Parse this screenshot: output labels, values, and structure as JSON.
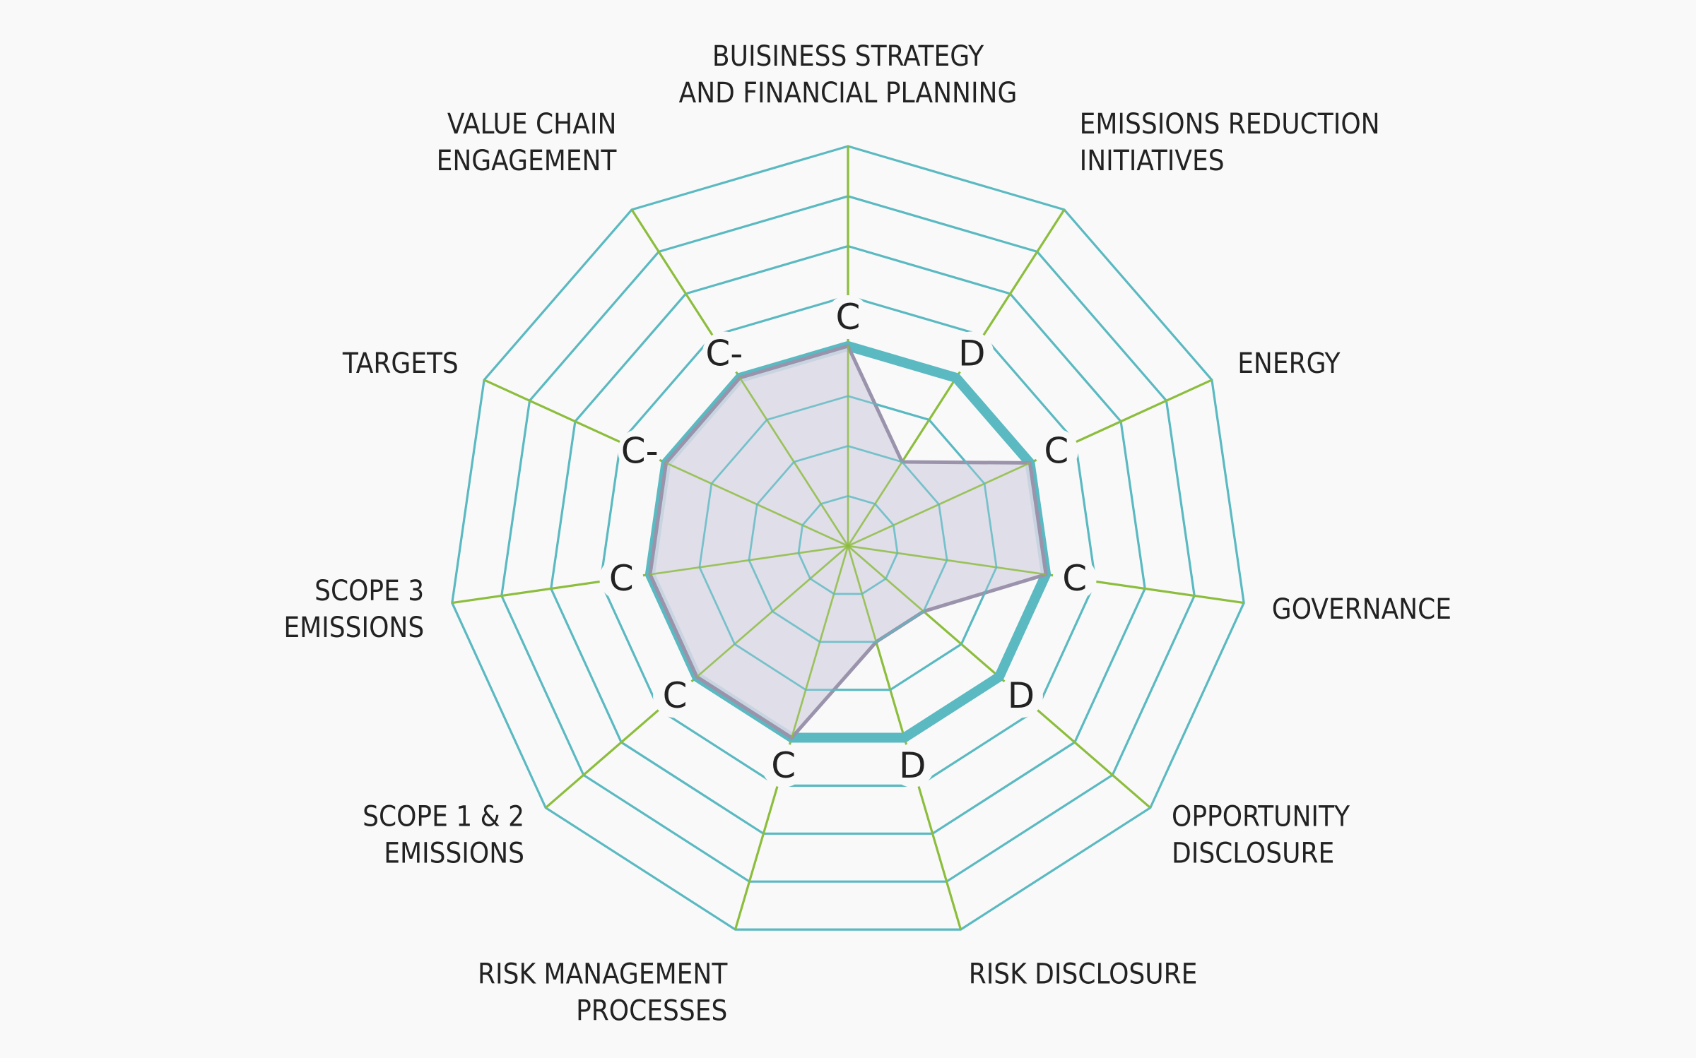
{
  "chart_data": {
    "type": "radar",
    "title": "",
    "levels": 8,
    "colors": {
      "grid": "#5ab9c1",
      "spokes": "#8cbd3c",
      "outline": "#5ab9c1",
      "series_stroke": "#9a93ab",
      "series_fill": "#dcd9e6",
      "background": "#f9f9f9"
    },
    "categories": [
      {
        "label": [
          "BUISINESS STRATEGY",
          "AND FINANCIAL PLANNING"
        ],
        "grade": "C",
        "value": 4,
        "outline": 4
      },
      {
        "label": [
          "EMISSIONS REDUCTION",
          "INITIATIVES"
        ],
        "grade": "D",
        "value": 2,
        "outline": 4
      },
      {
        "label": [
          "ENERGY"
        ],
        "grade": "C",
        "value": 4,
        "outline": 4
      },
      {
        "label": [
          "GOVERNANCE"
        ],
        "grade": "C",
        "value": 4,
        "outline": 4
      },
      {
        "label": [
          "OPPORTUNITY",
          "DISCLOSURE"
        ],
        "grade": "D",
        "value": 2,
        "outline": 4
      },
      {
        "label": [
          "RISK DISCLOSURE"
        ],
        "grade": "D",
        "value": 2,
        "outline": 4
      },
      {
        "label": [
          "RISK MANAGEMENT",
          "PROCESSES"
        ],
        "grade": "C",
        "value": 4,
        "outline": 4
      },
      {
        "label": [
          "SCOPE 1 & 2",
          "EMISSIONS"
        ],
        "grade": "C",
        "value": 4,
        "outline": 4
      },
      {
        "label": [
          "SCOPE 3",
          "EMISSIONS"
        ],
        "grade": "C",
        "value": 4,
        "outline": 4
      },
      {
        "label": [
          "TARGETS"
        ],
        "grade": "C-",
        "value": 4,
        "outline": 4
      },
      {
        "label": [
          "VALUE CHAIN",
          "ENGAGEMENT"
        ],
        "grade": "C-",
        "value": 4,
        "outline": 4
      }
    ]
  }
}
